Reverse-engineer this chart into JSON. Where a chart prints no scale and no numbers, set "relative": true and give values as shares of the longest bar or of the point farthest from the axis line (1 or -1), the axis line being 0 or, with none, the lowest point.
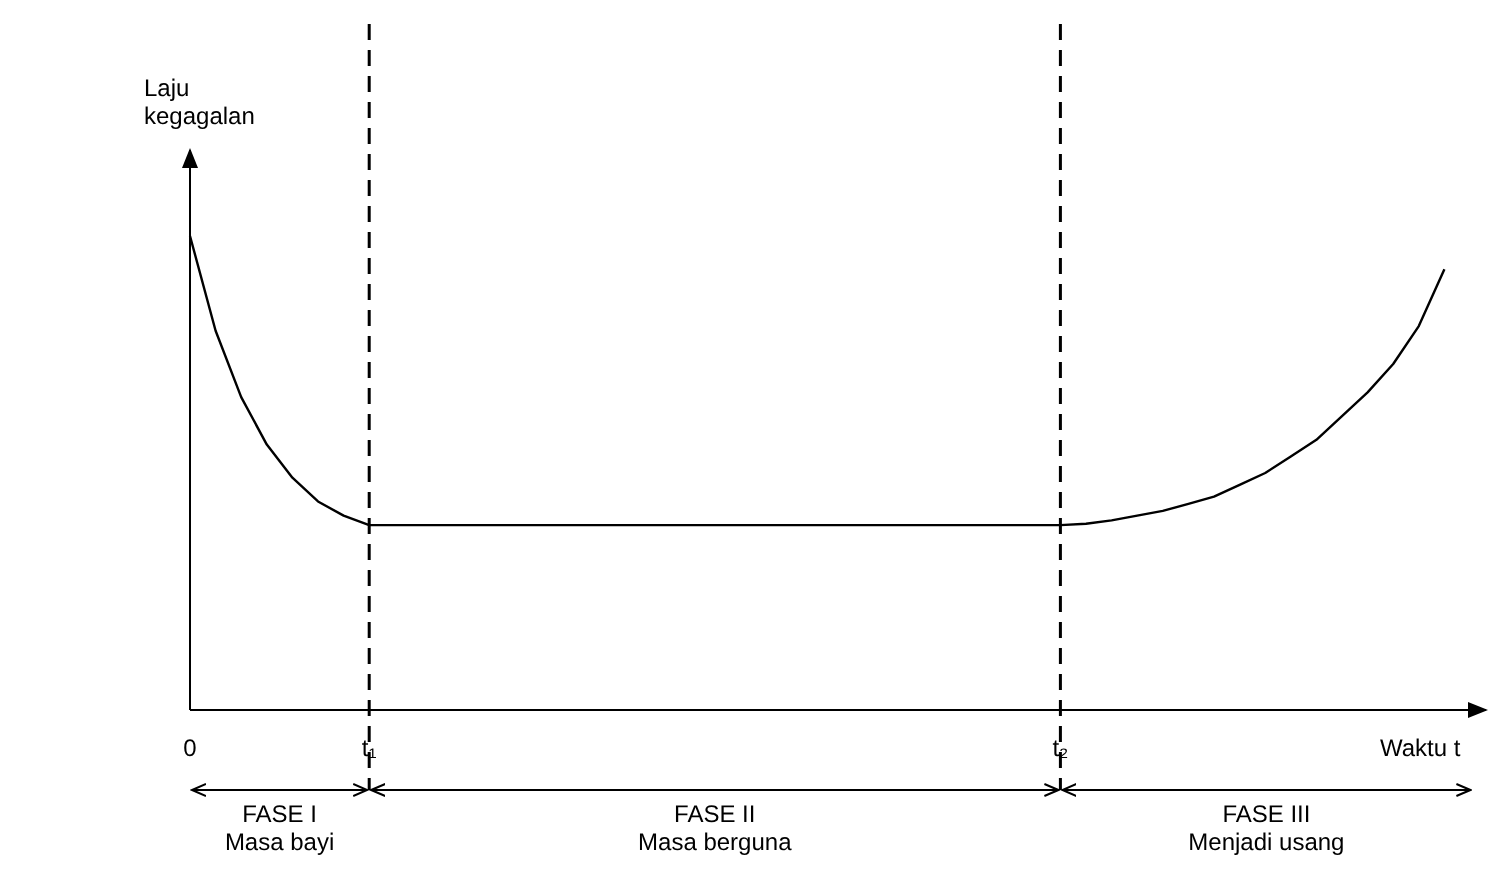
{
  "chart_data": {
    "type": "line",
    "relative": true,
    "xlabel": "Waktu t",
    "ylabel": "Laju kegagalan",
    "categories": [
      "0",
      null,
      null,
      null,
      null,
      null,
      null,
      "t₁",
      null,
      null,
      null,
      null,
      null,
      null,
      null,
      null,
      null,
      null,
      null,
      null,
      null,
      null,
      null,
      null,
      null,
      null,
      null,
      null,
      null,
      null,
      null,
      null,
      null,
      null,
      "t₂",
      null,
      null,
      null,
      null,
      null,
      null,
      null,
      null,
      null,
      null,
      null,
      null,
      null,
      null,
      null
    ],
    "grid": "x",
    "line_style": "solid",
    "series": [
      {
        "color": "#000000",
        "values": [
          1,
          0.8,
          0.66,
          0.56,
          0.49,
          0.44,
          0.41,
          0.39,
          0.39,
          0.39,
          0.39,
          0.39,
          0.39,
          0.39,
          0.39,
          0.39,
          0.39,
          0.39,
          0.39,
          0.39,
          0.39,
          0.39,
          0.39,
          0.39,
          0.39,
          0.39,
          0.39,
          0.39,
          0.39,
          0.39,
          0.39,
          0.39,
          0.39,
          0.39,
          0.39,
          0.393,
          0.4,
          0.41,
          0.42,
          0.435,
          0.45,
          0.475,
          0.5,
          0.535,
          0.57,
          0.62,
          0.67,
          0.73,
          0.81,
          0.93
        ]
      }
    ],
    "annotations": [
      "FASE I\nMasa bayi",
      "FASE II\nMasa berguna",
      "FASE III\nMenjadi usang"
    ]
  }
}
